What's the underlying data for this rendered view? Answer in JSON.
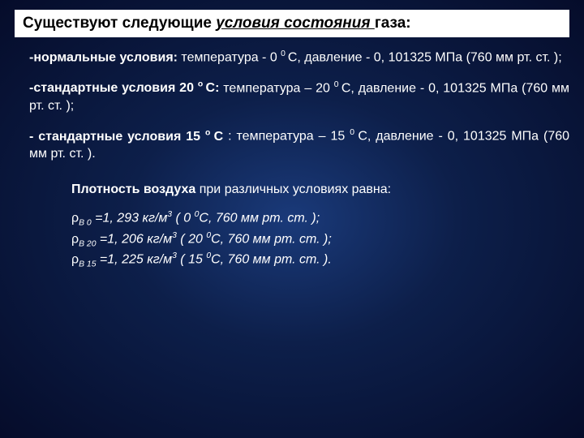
{
  "title": {
    "prefix": "Существуют следующие ",
    "underlined": "условия состояния ",
    "suffix": " газа:"
  },
  "blocks": [
    {
      "label": "-нормальные условия:",
      "rest": "  температура - 0 ",
      "sup1": "0 ",
      "mid": "С,  давление - 0, 101325  МПа (760 мм рт. ст. );"
    },
    {
      "label": "-стандартные условия 20 ",
      "sup0": "о ",
      "label2": "С:",
      "rest": "  температура – 20 ",
      "sup1": "0 ",
      "mid": "С,  давление - 0, 101325 МПа (760 мм рт. ст. );"
    },
    {
      "label": "- стандартные условия 15 ",
      "sup0": "о ",
      "label2": "С ",
      "rest": ":  температура – 15 ",
      "sup1": "0 ",
      "mid": "С,  давление - 0, 101325 МПа (760 мм рт. ст. )."
    }
  ],
  "density_title": {
    "bold": "Плотность воздуха",
    "rest": " при различных условиях равна:"
  },
  "density": [
    {
      "sub": "В 0",
      "val": " =1, 293 кг/м",
      "sup": "3",
      "tail": " ( 0 ",
      "sup2": "0",
      "tail2": "С, 760 мм рт. ст. );"
    },
    {
      "sub": "В 20",
      "val": " =1, 206 кг/м",
      "sup": "3",
      "tail": " ( 20 ",
      "sup2": "0",
      "tail2": "С, 760 мм рт. ст. );"
    },
    {
      "sub": "В 15",
      "val": " =1, 225 кг/м",
      "sup": "3",
      "tail": " ( 15 ",
      "sup2": "0",
      "tail2": "С, 760 мм рт. ст. )."
    }
  ]
}
